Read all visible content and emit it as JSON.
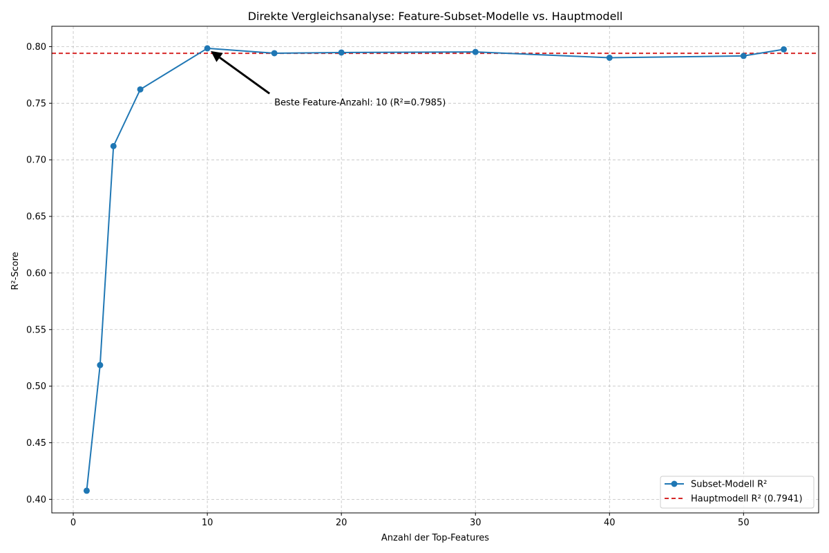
{
  "chart_data": {
    "type": "line",
    "title": "Direkte Vergleichsanalyse: Feature-Subset-Modelle vs. Hauptmodell",
    "xlabel": "Anzahl der Top-Features",
    "ylabel": "R²-Score",
    "xlim": [
      -1.6,
      55.6
    ],
    "ylim": [
      0.388,
      0.818
    ],
    "xticks": [
      0,
      10,
      20,
      30,
      40,
      50
    ],
    "xtick_labels": [
      "0",
      "10",
      "20",
      "30",
      "40",
      "50"
    ],
    "yticks": [
      0.4,
      0.45,
      0.5,
      0.55,
      0.6,
      0.65,
      0.7,
      0.75,
      0.8
    ],
    "ytick_labels": [
      "0.40",
      "0.45",
      "0.50",
      "0.55",
      "0.60",
      "0.65",
      "0.70",
      "0.75",
      "0.80"
    ],
    "grid": true,
    "legend_position": "bottom-right",
    "series": [
      {
        "name": "Subset-Modell R²",
        "color": "#1f77b4",
        "marker": "circle",
        "x": [
          1,
          2,
          3,
          5,
          10,
          15,
          20,
          30,
          40,
          50,
          53
        ],
        "y": [
          0.4076,
          0.5186,
          0.7121,
          0.7622,
          0.7985,
          0.7942,
          0.7948,
          0.7953,
          0.7902,
          0.7918,
          0.7976
        ]
      }
    ],
    "reference_lines": [
      {
        "name": "Hauptmodell R² (0.7941)",
        "color": "#d62728",
        "style": "dashed",
        "y": 0.7941
      }
    ],
    "annotations": [
      {
        "text": "Beste Feature-Anzahl: 10 (R²=0.7985)",
        "point": [
          10,
          0.7985
        ],
        "text_at": [
          15,
          0.75
        ]
      }
    ]
  }
}
